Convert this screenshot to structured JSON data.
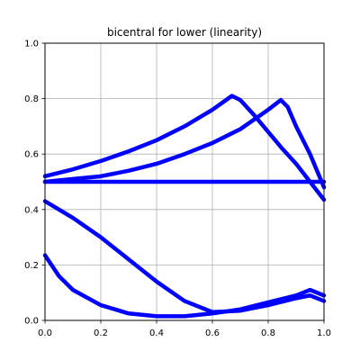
{
  "chart_data": {
    "type": "line",
    "title": "bicentral for lower (linearity)",
    "xlabel": "",
    "ylabel": "",
    "xlim": [
      0.0,
      1.0
    ],
    "ylim": [
      0.0,
      1.0
    ],
    "xticks": [
      "0.0",
      "0.2",
      "0.4",
      "0.6",
      "0.8",
      "1.0"
    ],
    "yticks": [
      "0.0",
      "0.2",
      "0.4",
      "0.6",
      "0.8",
      "1.0"
    ],
    "grid": true,
    "legend": "none",
    "series_color": "#0000ff",
    "series": [
      {
        "x": [
          0.0,
          0.1,
          0.2,
          0.3,
          0.4,
          0.5,
          0.6,
          0.67,
          0.7,
          0.75,
          0.8,
          0.85,
          0.9,
          0.95,
          1.0
        ],
        "y": [
          0.52,
          0.545,
          0.575,
          0.61,
          0.65,
          0.7,
          0.76,
          0.81,
          0.795,
          0.74,
          0.68,
          0.62,
          0.565,
          0.5,
          0.435
        ]
      },
      {
        "x": [
          0.0,
          0.1,
          0.2,
          0.3,
          0.4,
          0.5,
          0.6,
          0.7,
          0.8,
          0.845,
          0.87,
          0.9,
          0.95,
          1.0
        ],
        "y": [
          0.5,
          0.51,
          0.52,
          0.54,
          0.565,
          0.6,
          0.64,
          0.69,
          0.76,
          0.795,
          0.77,
          0.7,
          0.6,
          0.48
        ]
      },
      {
        "x": [
          0.0,
          0.5,
          1.0
        ],
        "y": [
          0.5,
          0.5,
          0.5
        ]
      },
      {
        "x": [
          0.0,
          0.1,
          0.2,
          0.3,
          0.4,
          0.5,
          0.6,
          0.7,
          0.8,
          0.9,
          0.95,
          1.0
        ],
        "y": [
          0.43,
          0.37,
          0.3,
          0.22,
          0.14,
          0.07,
          0.03,
          0.035,
          0.055,
          0.08,
          0.09,
          0.07
        ]
      },
      {
        "x": [
          0.0,
          0.05,
          0.1,
          0.2,
          0.3,
          0.4,
          0.5,
          0.6,
          0.7,
          0.8,
          0.9,
          0.95,
          1.0
        ],
        "y": [
          0.235,
          0.16,
          0.11,
          0.055,
          0.025,
          0.015,
          0.015,
          0.025,
          0.04,
          0.065,
          0.09,
          0.11,
          0.09
        ]
      }
    ]
  }
}
